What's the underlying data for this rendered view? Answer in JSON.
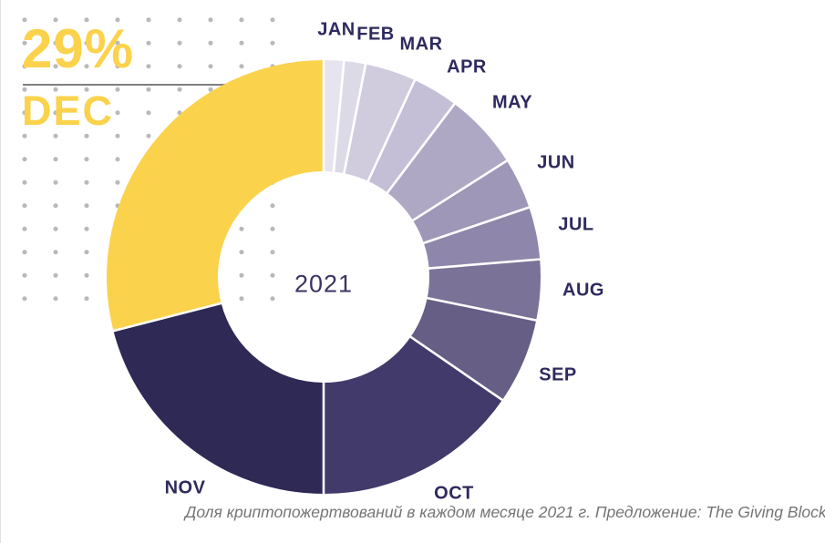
{
  "page": {
    "highlight": {
      "percent": "29%",
      "month": "DEC"
    },
    "caption": "Доля криптопожертвований в каждом месяце 2021 г. Предложение: The Giving Block",
    "source_name": "The Giving Block"
  },
  "colors": {
    "accent_yellow": "#FBD24B",
    "label_navy": "#2E2A5E",
    "caption_gray": "#757575",
    "divider_gray": "#7F7F7F",
    "dot_gray": "#B9B9B9",
    "background": "#FFFFFF"
  },
  "chart_data": {
    "type": "pie",
    "subtype": "donut",
    "title": "",
    "center_label": "2021",
    "categories": [
      "JAN",
      "FEB",
      "MAR",
      "APR",
      "MAY",
      "JUN",
      "JUL",
      "AUG",
      "SEP",
      "OCT",
      "NOV",
      "DEC"
    ],
    "values": [
      1.5,
      1.6,
      3.8,
      3.4,
      5.7,
      3.8,
      3.9,
      4.5,
      6.4,
      15.4,
      21.0,
      29.0
    ],
    "unit": "%",
    "direction": "clockwise",
    "start_angle_deg": 0,
    "highlighted_slice": {
      "month": "DEC",
      "value_label": "29%"
    },
    "slice_colors": [
      "#E6E4EF",
      "#DDDAE7",
      "#D0CCDE",
      "#C4BFD6",
      "#AEA8C5",
      "#9E97B7",
      "#8F87AB",
      "#7B7298",
      "#675E86",
      "#413A6B",
      "#2F2956",
      "#FBD24B"
    ],
    "legend_position": "labels-around-ring",
    "grid": false
  }
}
